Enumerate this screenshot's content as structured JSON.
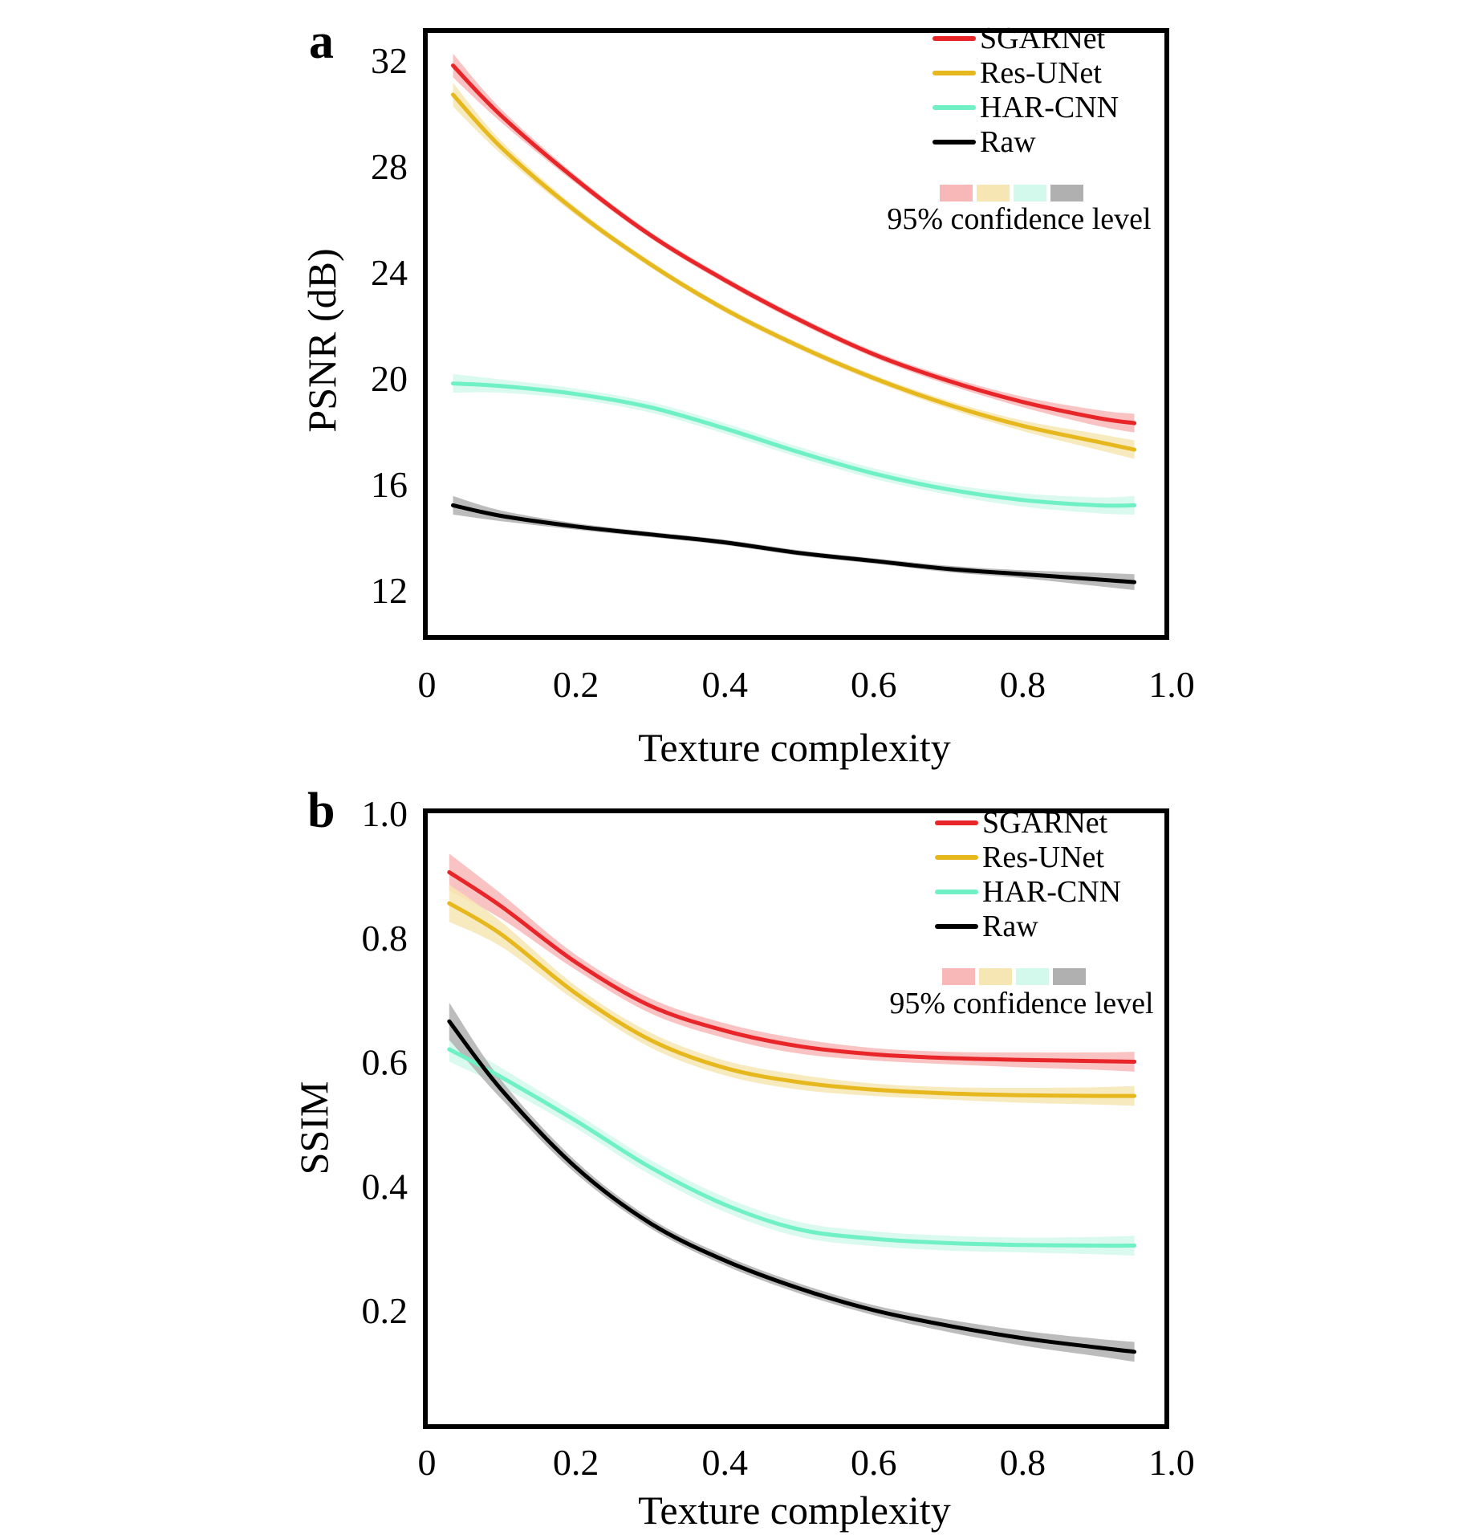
{
  "chart_data": [
    {
      "panel": "a",
      "type": "line",
      "title": "",
      "xlabel": "Texture complexity",
      "ylabel": "PSNR (dB)",
      "xlim": [
        0,
        1.0
      ],
      "ylim": [
        10.5,
        33
      ],
      "xticks": [
        0,
        0.2,
        0.4,
        0.6,
        0.8,
        1.0
      ],
      "xtick_labels": [
        "0",
        "0.2",
        "0.4",
        "0.6",
        "0.8",
        "1.0"
      ],
      "yticks": [
        12,
        16,
        20,
        24,
        28,
        32
      ],
      "ytick_labels": [
        "12",
        "16",
        "20",
        "24",
        "28",
        "32"
      ],
      "grid": false,
      "legend_position": "top-right",
      "legend_note": "95% confidence level",
      "x": [
        0.035,
        0.1,
        0.2,
        0.3,
        0.4,
        0.5,
        0.6,
        0.7,
        0.8,
        0.9,
        0.95
      ],
      "series": [
        {
          "name": "SGARNet",
          "color": "#e8262a",
          "band_color": "#f9b8b8",
          "values": [
            31.8,
            29.9,
            27.5,
            25.4,
            23.7,
            22.2,
            20.9,
            19.9,
            19.1,
            18.5,
            18.3
          ],
          "ci": [
            0.45,
            0.25,
            0.15,
            0.12,
            0.12,
            0.12,
            0.12,
            0.15,
            0.2,
            0.3,
            0.35
          ]
        },
        {
          "name": "Res-UNet",
          "color": "#e6b81e",
          "band_color": "#f6e6b3",
          "values": [
            30.7,
            28.7,
            26.3,
            24.3,
            22.6,
            21.2,
            20.0,
            19.0,
            18.2,
            17.6,
            17.3
          ],
          "ci": [
            0.45,
            0.25,
            0.15,
            0.12,
            0.12,
            0.12,
            0.12,
            0.15,
            0.2,
            0.3,
            0.35
          ]
        },
        {
          "name": "HAR-CNN",
          "color": "#6ff0c5",
          "band_color": "#d3f8ec",
          "values": [
            19.8,
            19.7,
            19.4,
            18.9,
            18.1,
            17.2,
            16.4,
            15.8,
            15.4,
            15.2,
            15.2
          ],
          "ci": [
            0.35,
            0.25,
            0.2,
            0.2,
            0.2,
            0.2,
            0.2,
            0.2,
            0.25,
            0.3,
            0.35
          ]
        },
        {
          "name": "Raw",
          "color": "#000000",
          "band_color": "#b0b0b0",
          "values": [
            15.2,
            14.8,
            14.4,
            14.1,
            13.8,
            13.4,
            13.1,
            12.8,
            12.6,
            12.4,
            12.3
          ],
          "ci": [
            0.35,
            0.2,
            0.12,
            0.1,
            0.1,
            0.1,
            0.1,
            0.12,
            0.15,
            0.25,
            0.3
          ]
        }
      ]
    },
    {
      "panel": "b",
      "type": "line",
      "title": "",
      "xlabel": "Texture complexity",
      "ylabel": "SSIM",
      "xlim": [
        0,
        1.0
      ],
      "ylim": [
        0.02,
        1.0
      ],
      "xticks": [
        0,
        0.2,
        0.4,
        0.6,
        0.8,
        1.0
      ],
      "xtick_labels": [
        "0",
        "0.2",
        "0.4",
        "0.6",
        "0.8",
        "1.0"
      ],
      "yticks": [
        0.2,
        0.4,
        0.6,
        0.8,
        1.0
      ],
      "ytick_labels": [
        "0.2",
        "0.4",
        "0.6",
        "0.8",
        "1.0"
      ],
      "grid": false,
      "legend_position": "top-right",
      "legend_note": "95% confidence level",
      "x": [
        0.03,
        0.1,
        0.2,
        0.3,
        0.4,
        0.5,
        0.6,
        0.7,
        0.8,
        0.9,
        0.95
      ],
      "series": [
        {
          "name": "SGARNet",
          "color": "#e8262a",
          "band_color": "#f9b8b8",
          "values": [
            0.905,
            0.85,
            0.76,
            0.69,
            0.65,
            0.625,
            0.612,
            0.606,
            0.603,
            0.601,
            0.6
          ],
          "ci": [
            0.03,
            0.02,
            0.012,
            0.012,
            0.012,
            0.012,
            0.01,
            0.01,
            0.012,
            0.014,
            0.016
          ]
        },
        {
          "name": "Res-UNet",
          "color": "#e6b81e",
          "band_color": "#f6e6b3",
          "values": [
            0.855,
            0.805,
            0.71,
            0.635,
            0.59,
            0.567,
            0.555,
            0.549,
            0.546,
            0.545,
            0.545
          ],
          "ci": [
            0.03,
            0.02,
            0.012,
            0.012,
            0.012,
            0.012,
            0.01,
            0.01,
            0.012,
            0.014,
            0.016
          ]
        },
        {
          "name": "HAR-CNN",
          "color": "#6ff0c5",
          "band_color": "#d3f8ec",
          "values": [
            0.62,
            0.575,
            0.505,
            0.43,
            0.37,
            0.33,
            0.315,
            0.308,
            0.305,
            0.304,
            0.304
          ],
          "ci": [
            0.02,
            0.015,
            0.012,
            0.012,
            0.012,
            0.012,
            0.012,
            0.012,
            0.012,
            0.014,
            0.016
          ]
        },
        {
          "name": "Raw",
          "color": "#000000",
          "band_color": "#b0b0b0",
          "values": [
            0.665,
            0.555,
            0.43,
            0.34,
            0.28,
            0.235,
            0.2,
            0.175,
            0.155,
            0.14,
            0.133
          ],
          "ci": [
            0.03,
            0.015,
            0.01,
            0.008,
            0.008,
            0.008,
            0.008,
            0.01,
            0.012,
            0.014,
            0.016
          ]
        }
      ]
    }
  ]
}
